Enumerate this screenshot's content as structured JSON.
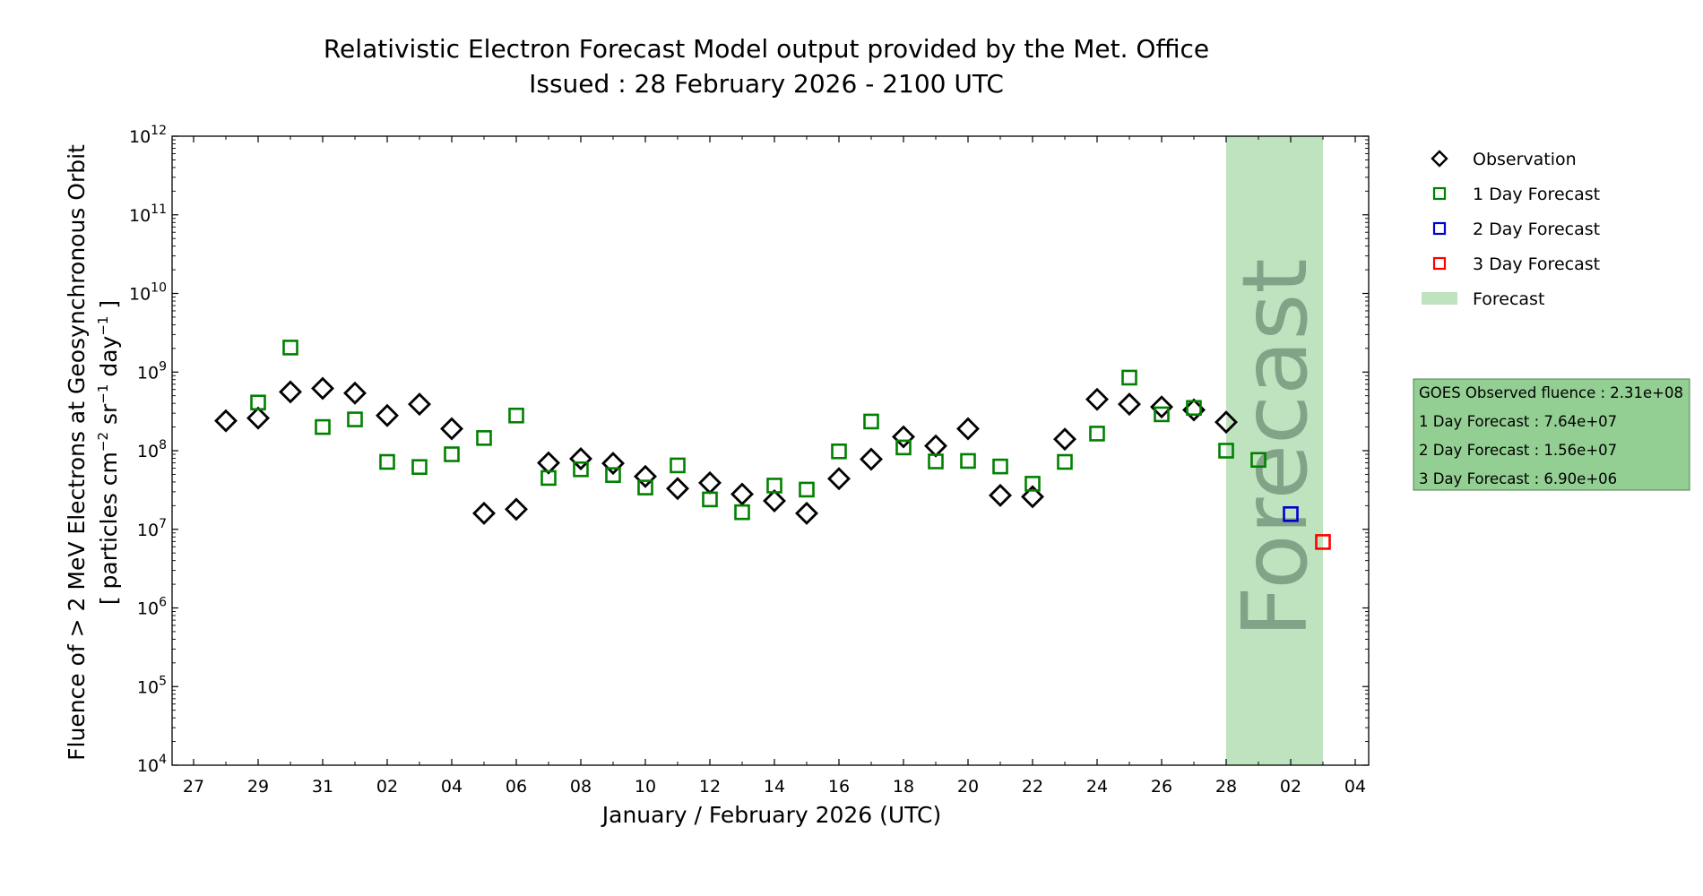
{
  "title": {
    "line1": "Relativistic Electron Forecast Model output provided by the Met. Office",
    "line2": "Issued : 28 February 2026 - 2100 UTC"
  },
  "xlabel": "January / February 2026 (UTC)",
  "ylabel": {
    "line1": "Fluence of > 2 MeV Electrons at Geosynchronous Orbit",
    "line2_prefix": "[ particles cm",
    "line2_exp1": "−2",
    "line2_mid": " sr",
    "line2_exp2": "−1",
    "line2_mid2": " day",
    "line2_exp3": "−1",
    "line2_suffix": " ]"
  },
  "forecast_band_label": "Forecast",
  "legend": [
    {
      "label": "Observation",
      "marker": "diamond",
      "color": "#000000"
    },
    {
      "label": "1 Day Forecast",
      "marker": "square",
      "color": "#008000"
    },
    {
      "label": "2 Day Forecast",
      "marker": "square",
      "color": "#0000cc"
    },
    {
      "label": "3 Day Forecast",
      "marker": "square",
      "color": "#ff0000"
    },
    {
      "label": "Forecast",
      "marker": "band",
      "color": "#bfe3bf"
    }
  ],
  "info_box": {
    "lines": [
      "GOES Observed fluence : 2.31e+08",
      "1 Day Forecast : 7.64e+07",
      "2 Day Forecast : 1.56e+07",
      "3 Day Forecast : 6.90e+06"
    ],
    "background": "#93cf93"
  },
  "chart_data": {
    "type": "scatter",
    "y_scale": "log",
    "x_ticks": [
      "27",
      "29",
      "31",
      "02",
      "04",
      "06",
      "08",
      "10",
      "12",
      "14",
      "16",
      "18",
      "20",
      "22",
      "24",
      "26",
      "28",
      "02",
      "04"
    ],
    "y_ticks": [
      "10^4",
      "10^5",
      "10^6",
      "10^7",
      "10^8",
      "10^9",
      "10^10",
      "10^11",
      "10^12"
    ],
    "ylim": [
      "1e4",
      "1e12"
    ],
    "forecast_band": [
      "2026-03-01",
      "2026-03-03"
    ],
    "series": [
      {
        "name": "Observation",
        "color": "#000000",
        "marker": "diamond",
        "x": [
          "2026-01-28",
          "2026-01-29",
          "2026-01-30",
          "2026-01-31",
          "2026-02-01",
          "2026-02-02",
          "2026-02-03",
          "2026-02-04",
          "2026-02-05",
          "2026-02-06",
          "2026-02-07",
          "2026-02-08",
          "2026-02-09",
          "2026-02-10",
          "2026-02-11",
          "2026-02-12",
          "2026-02-13",
          "2026-02-14",
          "2026-02-15",
          "2026-02-16",
          "2026-02-17",
          "2026-02-18",
          "2026-02-19",
          "2026-02-20",
          "2026-02-21",
          "2026-02-22",
          "2026-02-23",
          "2026-02-24",
          "2026-02-25",
          "2026-02-26",
          "2026-02-27",
          "2026-02-28"
        ],
        "y": [
          240000000.0,
          260000000.0,
          560000000.0,
          620000000.0,
          540000000.0,
          280000000.0,
          390000000.0,
          190000000.0,
          16000000.0,
          18000000.0,
          70000000.0,
          79000000.0,
          69000000.0,
          47000000.0,
          33000000.0,
          39000000.0,
          28000000.0,
          23000000.0,
          16000000.0,
          44000000.0,
          78000000.0,
          150000000.0,
          115000000.0,
          190000000.0,
          27000000.0,
          26000000.0,
          140000000.0,
          450000000.0,
          390000000.0,
          360000000.0,
          330000000.0,
          231000000.0
        ]
      },
      {
        "name": "1 Day Forecast",
        "color": "#008000",
        "marker": "square",
        "x": [
          "2026-01-29",
          "2026-01-30",
          "2026-01-31",
          "2026-02-01",
          "2026-02-02",
          "2026-02-03",
          "2026-02-04",
          "2026-02-05",
          "2026-02-06",
          "2026-02-07",
          "2026-02-08",
          "2026-02-09",
          "2026-02-10",
          "2026-02-11",
          "2026-02-12",
          "2026-02-13",
          "2026-02-14",
          "2026-02-15",
          "2026-02-16",
          "2026-02-17",
          "2026-02-18",
          "2026-02-19",
          "2026-02-20",
          "2026-02-21",
          "2026-02-22",
          "2026-02-23",
          "2026-02-24",
          "2026-02-25",
          "2026-02-26",
          "2026-02-27",
          "2026-02-28",
          "2026-03-01"
        ],
        "y": [
          410000000.0,
          2050000000.0,
          200000000.0,
          250000000.0,
          72000000.0,
          62000000.0,
          90000000.0,
          145000000.0,
          280000000.0,
          45000000.0,
          58000000.0,
          49000000.0,
          34000000.0,
          65000000.0,
          24000000.0,
          16500000.0,
          36000000.0,
          32000000.0,
          98000000.0,
          235000000.0,
          110000000.0,
          73000000.0,
          74000000.0,
          63000000.0,
          38000000.0,
          72000000.0,
          165000000.0,
          850000000.0,
          290000000.0,
          350000000.0,
          100000000.0,
          76400000.0
        ]
      },
      {
        "name": "2 Day Forecast",
        "color": "#0000cc",
        "marker": "square",
        "x": [
          "2026-03-02"
        ],
        "y": [
          15600000.0
        ]
      },
      {
        "name": "3 Day Forecast",
        "color": "#ff0000",
        "marker": "square",
        "x": [
          "2026-03-03"
        ],
        "y": [
          6900000.0
        ]
      }
    ]
  }
}
